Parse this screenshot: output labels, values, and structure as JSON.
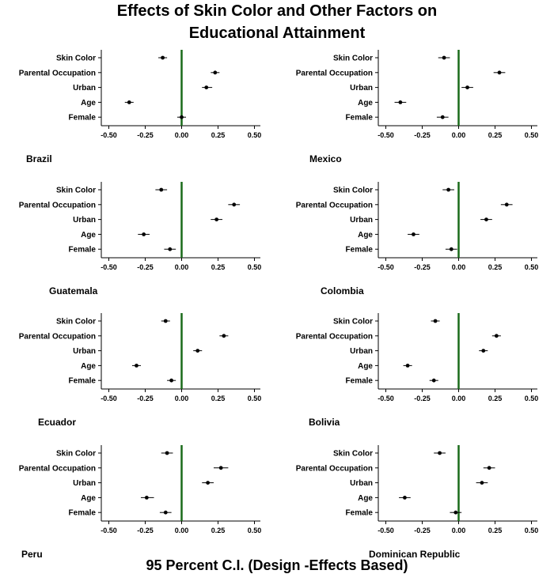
{
  "title_line1": "Effects of Skin Color and Other Factors on",
  "title_line2": "Educational Attainment",
  "footer": "95 Percent C.I. (Design -Effects Based)",
  "colors": {
    "zero_line": "#1a6b1a",
    "point": "#000000",
    "axis": "#000000"
  },
  "chart_data": {
    "type": "scatter",
    "variables": [
      "Skin Color",
      "Parental Occupation",
      "Urban",
      "Age",
      "Female"
    ],
    "xlim": [
      -0.55,
      0.55
    ],
    "xticks": [
      -0.5,
      -0.25,
      0.0,
      0.25,
      0.5
    ],
    "xtick_labels": [
      "-0.50",
      "-0.25",
      "0.00",
      "0.25",
      "0.50"
    ],
    "reference_line": 0,
    "panels": [
      {
        "country": "Brazil",
        "estimates": [
          -0.13,
          0.23,
          0.17,
          -0.36,
          0.0
        ],
        "ci_low": [
          -0.16,
          0.2,
          0.14,
          -0.39,
          -0.03
        ],
        "ci_high": [
          -0.1,
          0.26,
          0.21,
          -0.33,
          0.03
        ]
      },
      {
        "country": "Mexico",
        "estimates": [
          -0.1,
          0.28,
          0.06,
          -0.4,
          -0.11
        ],
        "ci_low": [
          -0.14,
          0.24,
          0.02,
          -0.44,
          -0.15
        ],
        "ci_high": [
          -0.06,
          0.32,
          0.1,
          -0.36,
          -0.07
        ]
      },
      {
        "country": "Guatemala",
        "estimates": [
          -0.14,
          0.36,
          0.24,
          -0.26,
          -0.08
        ],
        "ci_low": [
          -0.18,
          0.32,
          0.2,
          -0.3,
          -0.12
        ],
        "ci_high": [
          -0.1,
          0.4,
          0.28,
          -0.22,
          -0.04
        ]
      },
      {
        "country": "Colombia",
        "estimates": [
          -0.07,
          0.33,
          0.19,
          -0.31,
          -0.05
        ],
        "ci_low": [
          -0.11,
          0.29,
          0.15,
          -0.35,
          -0.09
        ],
        "ci_high": [
          -0.03,
          0.37,
          0.23,
          -0.27,
          -0.01
        ]
      },
      {
        "country": "Ecuador",
        "estimates": [
          -0.11,
          0.29,
          0.11,
          -0.31,
          -0.07
        ],
        "ci_low": [
          -0.14,
          0.26,
          0.08,
          -0.34,
          -0.1
        ],
        "ci_high": [
          -0.08,
          0.32,
          0.14,
          -0.28,
          -0.04
        ]
      },
      {
        "country": "Bolivia",
        "estimates": [
          -0.16,
          0.26,
          0.17,
          -0.35,
          -0.17
        ],
        "ci_low": [
          -0.19,
          0.23,
          0.14,
          -0.38,
          -0.2
        ],
        "ci_high": [
          -0.13,
          0.29,
          0.2,
          -0.32,
          -0.14
        ]
      },
      {
        "country": "Peru",
        "estimates": [
          -0.1,
          0.27,
          0.18,
          -0.24,
          -0.11
        ],
        "ci_low": [
          -0.14,
          0.22,
          0.14,
          -0.28,
          -0.15
        ],
        "ci_high": [
          -0.06,
          0.32,
          0.22,
          -0.19,
          -0.07
        ]
      },
      {
        "country": "Dominican Republic",
        "estimates": [
          -0.13,
          0.21,
          0.16,
          -0.37,
          -0.02
        ],
        "ci_low": [
          -0.17,
          0.17,
          0.12,
          -0.41,
          -0.06
        ],
        "ci_high": [
          -0.09,
          0.25,
          0.2,
          -0.33,
          0.02
        ]
      }
    ]
  }
}
